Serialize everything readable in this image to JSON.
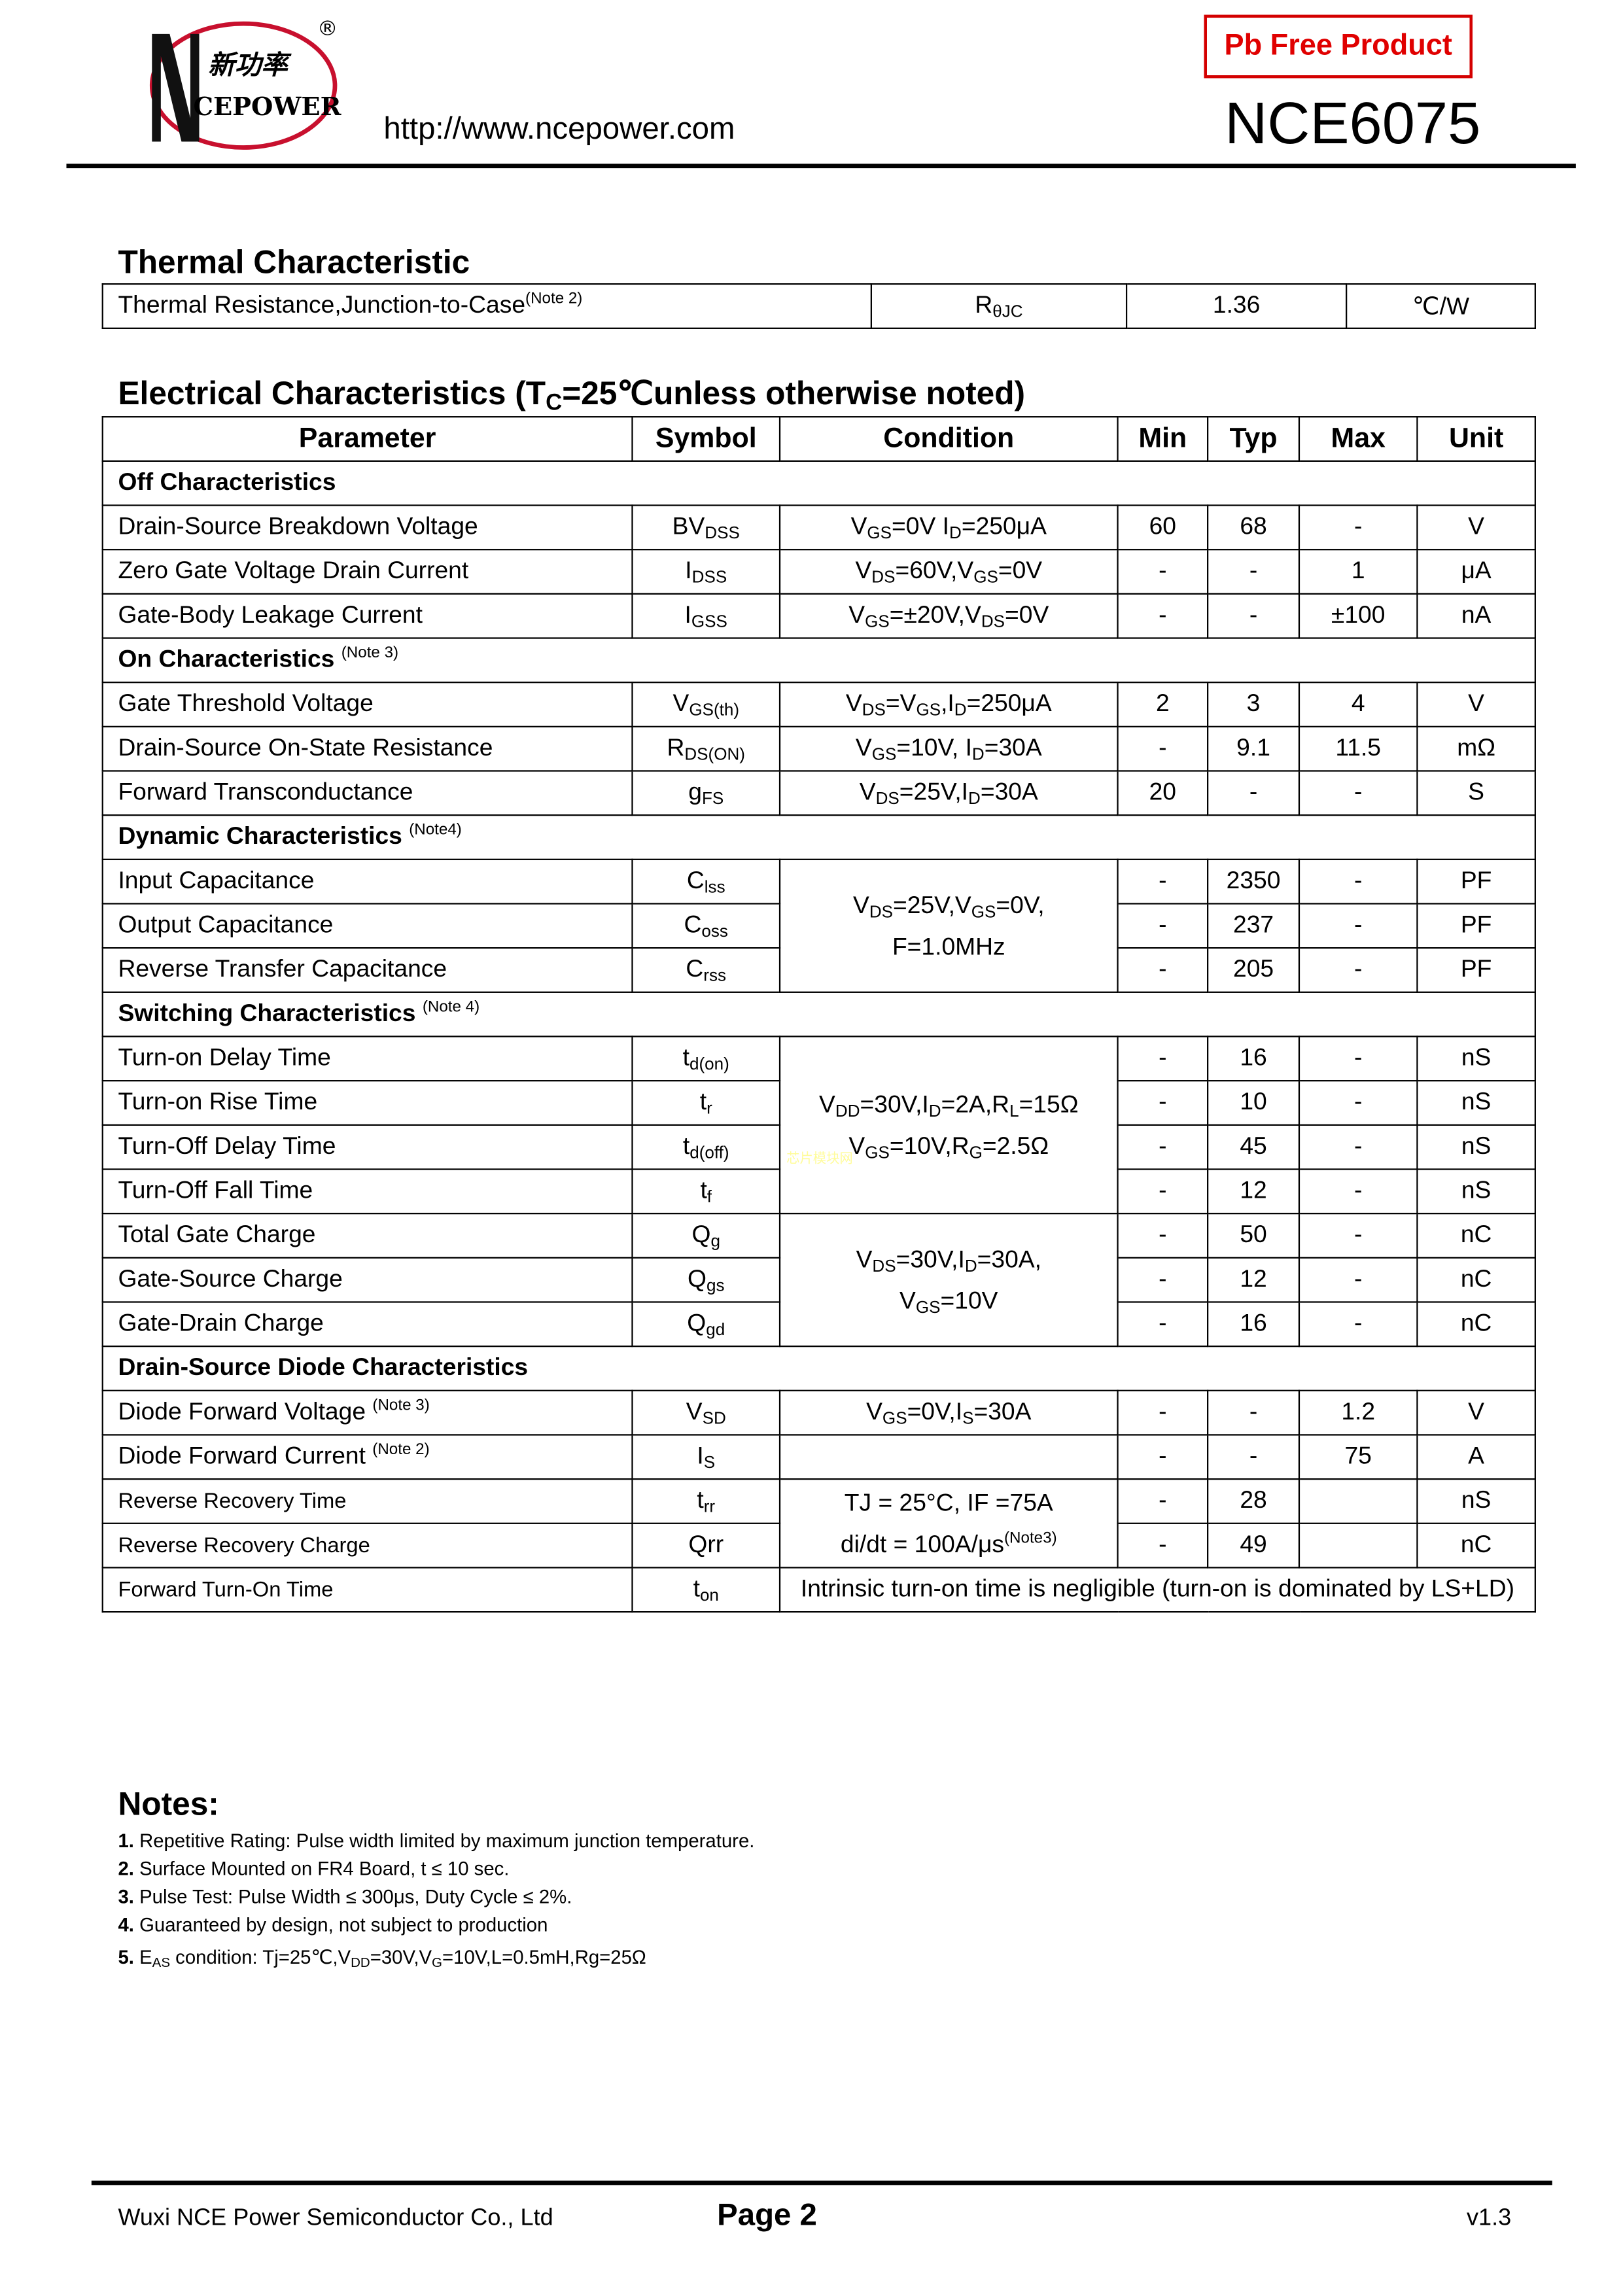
{
  "header": {
    "logo": {
      "cn_text": "新功率",
      "en_text": "CEPOWER",
      "registered": "®",
      "ring_color": "#c8102e"
    },
    "url": "http://www.ncepower.com",
    "badge": "Pb Free Product",
    "part_number": "NCE6075",
    "badge_color": "#e00000"
  },
  "thermal": {
    "title": "Thermal Characteristic",
    "row": {
      "param": "Thermal Resistance,Junction-to-Case",
      "note": "(Note 2)",
      "sym": [
        "R",
        "θJC"
      ],
      "value": "1.36",
      "unit": "℃/W"
    }
  },
  "electrical": {
    "title_parts": [
      "Electrical Characteristics (T",
      "C",
      "=25℃unless otherwise noted)"
    ],
    "headers": [
      "Parameter",
      "Symbol",
      "Condition",
      "Min",
      "Typ",
      "Max",
      "Unit"
    ],
    "rows": [
      {
        "section": "Off Characteristics"
      },
      {
        "param": "Drain-Source Breakdown Voltage",
        "sym": [
          "BV",
          "DSS"
        ],
        "cond": [
          [
            "V",
            "GS",
            "=0V I",
            "D",
            "=250μA"
          ]
        ],
        "min": "60",
        "typ": "68",
        "max": "-",
        "unit": "V"
      },
      {
        "param": "Zero Gate Voltage Drain Current",
        "sym": [
          "I",
          "DSS"
        ],
        "cond": [
          [
            "V",
            "DS",
            "=60V,V",
            "GS",
            "=0V"
          ]
        ],
        "min": "-",
        "typ": "-",
        "max": "1",
        "unit": "μA"
      },
      {
        "param": "Gate-Body Leakage Current",
        "sym": [
          "I",
          "GSS"
        ],
        "cond": [
          [
            "V",
            "GS",
            "=±20V,V",
            "DS",
            "=0V"
          ]
        ],
        "min": "-",
        "typ": "-",
        "max": "±100",
        "unit": "nA"
      },
      {
        "section": "On Characteristics",
        "note": "(Note 3)"
      },
      {
        "param": "Gate Threshold Voltage",
        "sym": [
          "V",
          "GS(th)"
        ],
        "cond": [
          [
            "V",
            "DS",
            "=V",
            "GS",
            ",I",
            "D",
            "=250μA"
          ]
        ],
        "min": "2",
        "typ": "3",
        "max": "4",
        "unit": "V"
      },
      {
        "param": "Drain-Source On-State Resistance",
        "sym": [
          "R",
          "DS(ON)"
        ],
        "cond": [
          [
            "V",
            "GS",
            "=10V, I",
            "D",
            "=30A"
          ]
        ],
        "min": "-",
        "typ": "9.1",
        "max": "11.5",
        "unit": "mΩ"
      },
      {
        "param": "Forward Transconductance",
        "sym": [
          "g",
          "FS"
        ],
        "cond": [
          [
            "V",
            "DS",
            "=25V,I",
            "D",
            "=30A"
          ]
        ],
        "min": "20",
        "typ": "-",
        "max": "-",
        "unit": "S"
      },
      {
        "section": "Dynamic Characteristics",
        "note": "(Note4)"
      },
      {
        "param": "Input Capacitance",
        "sym": [
          "C",
          "lss"
        ],
        "cond": [
          [
            "V",
            "DS",
            "=25V,V",
            "GS",
            "=0V,"
          ],
          [
            "F=1.0MHz"
          ]
        ],
        "rowspan": 3,
        "min": "-",
        "typ": "2350",
        "max": "-",
        "unit": "PF"
      },
      {
        "param": "Output Capacitance",
        "sym": [
          "C",
          "oss"
        ],
        "min": "-",
        "typ": "237",
        "max": "-",
        "unit": "PF"
      },
      {
        "param": "Reverse Transfer Capacitance",
        "sym": [
          "C",
          "rss"
        ],
        "min": "-",
        "typ": "205",
        "max": "-",
        "unit": "PF"
      },
      {
        "section": "Switching Characteristics",
        "note": "(Note 4)"
      },
      {
        "param": "Turn-on Delay Time",
        "sym": [
          "t",
          "d(on)"
        ],
        "cond": [
          [
            "V",
            "DD",
            "=30V,I",
            "D",
            "=2A,R",
            "L",
            "=15Ω"
          ],
          [
            "V",
            "GS",
            "=10V,R",
            "G",
            "=2.5Ω"
          ]
        ],
        "rowspan": 4,
        "min": "-",
        "typ": "16",
        "max": "-",
        "unit": "nS"
      },
      {
        "param": "Turn-on Rise Time",
        "sym": [
          "t",
          "r"
        ],
        "min": "-",
        "typ": "10",
        "max": "-",
        "unit": "nS"
      },
      {
        "param": "Turn-Off Delay Time",
        "sym": [
          "t",
          "d(off)"
        ],
        "min": "-",
        "typ": "45",
        "max": "-",
        "unit": "nS"
      },
      {
        "param": "Turn-Off Fall Time",
        "sym": [
          "t",
          "f"
        ],
        "min": "-",
        "typ": "12",
        "max": "-",
        "unit": "nS"
      },
      {
        "param": "Total Gate Charge",
        "sym": [
          "Q",
          "g"
        ],
        "cond": [
          [
            "V",
            "DS",
            "=30V,I",
            "D",
            "=30A,"
          ],
          [
            "V",
            "GS",
            "=10V"
          ]
        ],
        "rowspan": 3,
        "min": "-",
        "typ": "50",
        "max": "-",
        "unit": "nC"
      },
      {
        "param": "Gate-Source Charge",
        "sym": [
          "Q",
          "gs"
        ],
        "min": "-",
        "typ": "12",
        "max": "-",
        "unit": "nC"
      },
      {
        "param": "Gate-Drain Charge",
        "sym": [
          "Q",
          "gd"
        ],
        "min": "-",
        "typ": "16",
        "max": "-",
        "unit": "nC"
      },
      {
        "section": "Drain-Source Diode Characteristics"
      },
      {
        "param": "Diode Forward Voltage",
        "note": "(Note 3)",
        "sym": [
          "V",
          "SD"
        ],
        "cond": [
          [
            "V",
            "GS",
            "=0V,I",
            "S",
            "=30A"
          ]
        ],
        "min": "-",
        "typ": "-",
        "max": "1.2",
        "unit": "V"
      },
      {
        "param": "Diode Forward Current",
        "note": "(Note 2)",
        "sym": [
          "I",
          "S"
        ],
        "cond": [
          [
            ""
          ]
        ],
        "min": "-",
        "typ": "-",
        "max": "75",
        "unit": "A"
      },
      {
        "param": "Reverse Recovery Time",
        "small": true,
        "sym": [
          "t",
          "rr"
        ],
        "cond": [
          [
            "TJ = 25°C, IF =75A"
          ],
          [
            "di/dt = 100A/μs"
          ]
        ],
        "cond_note": "(Note3)",
        "rowspan": 2,
        "min": "-",
        "typ": "28",
        "max": "",
        "unit": "nS"
      },
      {
        "param": "Reverse Recovery Charge",
        "small": true,
        "sym": [
          "Qrr"
        ],
        "min": "-",
        "typ": "49",
        "max": "",
        "unit": "nC"
      },
      {
        "param": "Forward Turn-On Time",
        "small": true,
        "sym": [
          "t",
          "on"
        ],
        "span_text": "Intrinsic turn-on time is negligible (turn-on is dominated by LS+LD)"
      }
    ]
  },
  "watermark": "芯片模块网",
  "notes": {
    "title": "Notes:",
    "items": [
      {
        "num": "1.",
        "parts": [
          "Repetitive Rating: Pulse width limited by maximum junction temperature."
        ]
      },
      {
        "num": "2.",
        "parts": [
          "Surface Mounted on FR4 Board, t ≤ 10 sec."
        ]
      },
      {
        "num": "3.",
        "parts": [
          "Pulse Test: Pulse Width ≤ 300μs, Duty Cycle ≤ 2%."
        ]
      },
      {
        "num": "4.",
        "parts": [
          "Guaranteed by design, not subject to production"
        ]
      },
      {
        "num": "5.",
        "parts": [
          "E",
          "AS",
          " condition: Tj=25℃,V",
          "DD",
          "=30V,V",
          "G",
          "=10V,L=0.5mH,Rg=25Ω"
        ]
      }
    ]
  },
  "footer": {
    "company": "Wuxi NCE Power Semiconductor Co., Ltd",
    "page": "Page  2",
    "version": "v1.3"
  }
}
